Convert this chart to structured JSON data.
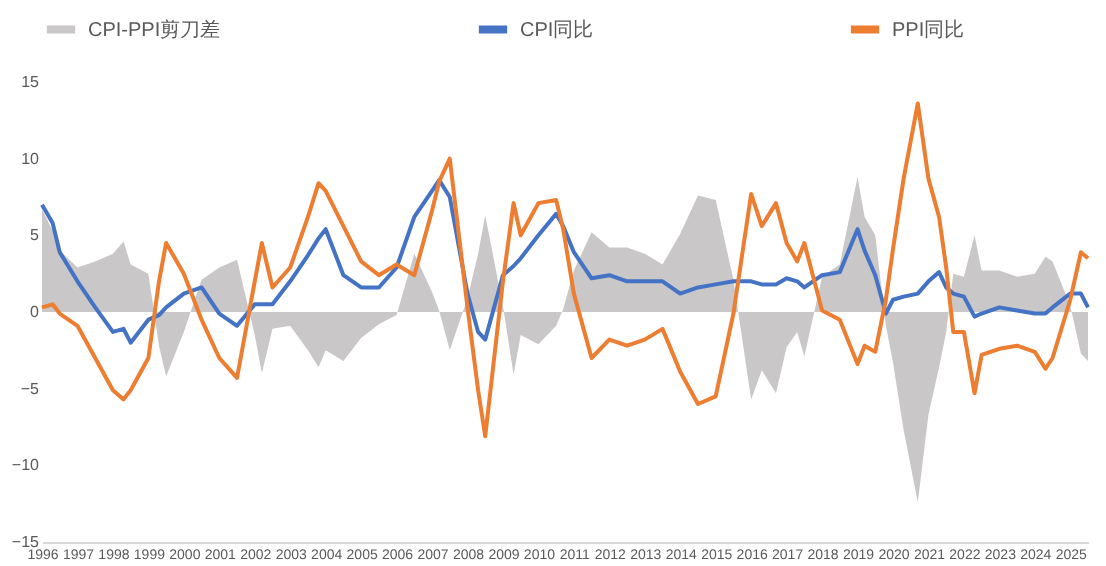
{
  "chart_data": {
    "type": "line",
    "x": [
      1996.0,
      1996.3,
      1996.5,
      1997.0,
      1997.5,
      1998.0,
      1998.3,
      1998.5,
      1999.0,
      1999.3,
      1999.5,
      2000.0,
      2000.5,
      2001.0,
      2001.5,
      2002.0,
      2002.2,
      2002.5,
      2003.0,
      2003.5,
      2003.8,
      2004.0,
      2004.5,
      2005.0,
      2005.5,
      2006.0,
      2006.5,
      2007.0,
      2007.2,
      2007.5,
      2008.0,
      2008.3,
      2008.5,
      2009.0,
      2009.3,
      2009.5,
      2010.0,
      2010.5,
      2010.7,
      2011.0,
      2011.5,
      2012.0,
      2012.5,
      2013.0,
      2013.5,
      2014.0,
      2014.5,
      2015.0,
      2015.5,
      2016.0,
      2016.3,
      2016.7,
      2017.0,
      2017.3,
      2017.5,
      2018.0,
      2018.5,
      2019.0,
      2019.2,
      2019.5,
      2019.8,
      2020.0,
      2020.3,
      2020.7,
      2021.0,
      2021.3,
      2021.5,
      2021.7,
      2022.0,
      2022.3,
      2022.5,
      2023.0,
      2023.5,
      2024.0,
      2024.3,
      2024.5,
      2025.0,
      2025.3,
      2025.5
    ],
    "series": [
      {
        "name": "CPI-PPI剪刀差",
        "type": "area",
        "color": "#c9c7c8",
        "values": [
          6.7,
          5.3,
          4.0,
          2.9,
          3.3,
          3.8,
          4.6,
          3.1,
          2.5,
          -2.2,
          -4.2,
          -1.3,
          2.1,
          2.9,
          3.4,
          -1.5,
          -4.0,
          -1.1,
          -0.9,
          -2.5,
          -3.6,
          -2.5,
          -3.2,
          -1.7,
          -0.8,
          -0.2,
          3.8,
          1.3,
          0.1,
          -2.5,
          0.9,
          3.8,
          6.3,
          0.4,
          -4.1,
          -1.5,
          -2.1,
          -0.9,
          0.2,
          2.7,
          5.2,
          4.2,
          4.2,
          3.8,
          3.1,
          5.1,
          7.6,
          7.3,
          2.1,
          -5.7,
          -3.8,
          -5.3,
          -2.3,
          -1.3,
          -2.9,
          2.3,
          3.1,
          8.8,
          6.2,
          5.0,
          -0.9,
          -3.3,
          -7.7,
          -12.4,
          -6.7,
          -3.6,
          -1.3,
          2.5,
          2.3,
          5.0,
          2.7,
          2.7,
          2.3,
          2.5,
          3.6,
          3.3,
          0.4,
          -2.7,
          -3.2
        ]
      },
      {
        "name": "CPI同比",
        "color": "#4472c4",
        "values": [
          7.0,
          5.8,
          3.9,
          2.0,
          0.3,
          -1.3,
          -1.1,
          -2.0,
          -0.5,
          -0.2,
          0.3,
          1.2,
          1.6,
          -0.1,
          -0.9,
          0.5,
          0.5,
          0.5,
          2.0,
          3.7,
          4.8,
          5.4,
          2.4,
          1.6,
          1.6,
          2.9,
          6.2,
          7.9,
          8.6,
          7.5,
          1.2,
          -1.3,
          -1.8,
          2.4,
          3.0,
          3.5,
          5.0,
          6.4,
          5.6,
          3.9,
          2.2,
          2.4,
          2.0,
          2.0,
          2.0,
          1.2,
          1.6,
          1.8,
          2.0,
          2.0,
          1.8,
          1.8,
          2.2,
          2.0,
          1.6,
          2.4,
          2.6,
          5.4,
          4.0,
          2.4,
          -0.1,
          0.8,
          1.0,
          1.2,
          2.0,
          2.6,
          1.6,
          1.2,
          1.0,
          -0.3,
          -0.1,
          0.3,
          0.1,
          -0.1,
          -0.1,
          0.3,
          1.2,
          1.2,
          0.3
        ]
      },
      {
        "name": "PPI同比",
        "color": "#ed7d31",
        "values": [
          0.3,
          0.5,
          -0.1,
          -0.9,
          -3.0,
          -5.1,
          -5.7,
          -5.1,
          -3.0,
          2.0,
          4.5,
          2.5,
          -0.5,
          -3.0,
          -4.3,
          2.0,
          4.5,
          1.6,
          2.9,
          6.2,
          8.4,
          7.9,
          5.6,
          3.3,
          2.4,
          3.1,
          2.4,
          6.6,
          8.5,
          10.0,
          0.3,
          -5.1,
          -8.1,
          2.0,
          7.1,
          5.0,
          7.1,
          7.3,
          5.4,
          1.2,
          -3.0,
          -1.8,
          -2.2,
          -1.8,
          -1.1,
          -3.9,
          -6.0,
          -5.5,
          -0.1,
          7.7,
          5.6,
          7.1,
          4.5,
          3.3,
          4.5,
          0.1,
          -0.5,
          -3.4,
          -2.2,
          -2.6,
          0.8,
          4.1,
          8.7,
          13.6,
          8.7,
          6.2,
          2.9,
          -1.3,
          -1.3,
          -5.3,
          -2.8,
          -2.4,
          -2.2,
          -2.6,
          -3.7,
          -3.0,
          0.8,
          3.9,
          3.5
        ]
      }
    ],
    "xlim": [
      1996,
      2025.5
    ],
    "xticks": [
      1996,
      1997,
      1998,
      1999,
      2000,
      2001,
      2002,
      2003,
      2004,
      2005,
      2006,
      2007,
      2008,
      2009,
      2010,
      2011,
      2012,
      2013,
      2014,
      2015,
      2016,
      2017,
      2018,
      2019,
      2020,
      2021,
      2022,
      2023,
      2024,
      2025
    ],
    "ylim": [
      -15,
      15
    ],
    "yticks": [
      -15,
      -10,
      -5,
      0,
      5,
      10,
      15
    ],
    "grid": false,
    "legend": "top"
  }
}
